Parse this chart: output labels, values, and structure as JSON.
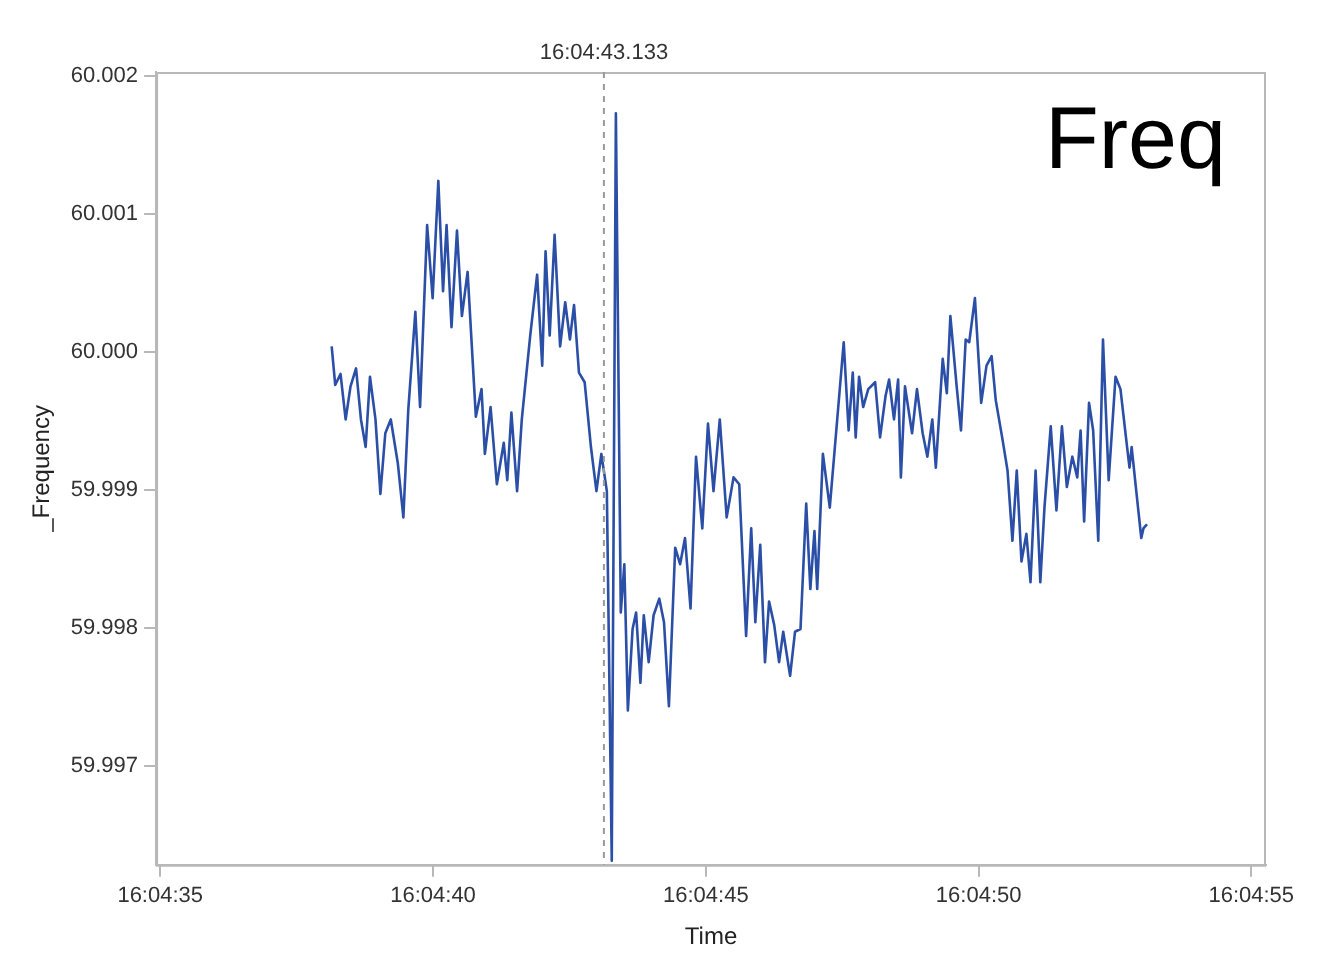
{
  "chart_data": {
    "type": "line",
    "xlabel": "Time",
    "ylabel": "_Frequency",
    "annotations": [
      "Freq"
    ],
    "xlim": [
      16.076368,
      16.082019
    ],
    "ylim": [
      59.99628,
      60.00203
    ],
    "xticks": [
      {
        "value": 16.076389,
        "label": "16:04:35"
      },
      {
        "value": 16.077778,
        "label": "16:04:40"
      },
      {
        "value": 16.079167,
        "label": "16:04:45"
      },
      {
        "value": 16.080556,
        "label": "16:04:50"
      },
      {
        "value": 16.081944,
        "label": "16:04:55"
      }
    ],
    "yticks": [
      {
        "value": 59.997,
        "label": "59.997"
      },
      {
        "value": 59.998,
        "label": "59.998"
      },
      {
        "value": 59.999,
        "label": "59.999"
      },
      {
        "value": 60.0,
        "label": "60.000"
      },
      {
        "value": 60.001,
        "label": "60.001"
      },
      {
        "value": 60.002,
        "label": "60.002"
      }
    ],
    "ref_lines": [
      {
        "axis": "x",
        "value": 16.078648,
        "label": "16:04:43.133",
        "color": "#9a9a9a",
        "line_style": "dashed"
      }
    ],
    "grid": false,
    "legend": false,
    "marker": "none",
    "line_style": "solid",
    "series": [
      {
        "color": "#2b4fa6",
        "x": [
          16.077262,
          16.07728,
          16.077307,
          16.077333,
          16.077358,
          16.077386,
          16.077411,
          16.077435,
          16.077457,
          16.077485,
          16.07751,
          16.077535,
          16.077563,
          16.077599,
          16.077627,
          16.077652,
          16.077688,
          16.077712,
          16.077748,
          16.077776,
          16.077805,
          16.077829,
          16.077847,
          16.077872,
          16.0779,
          16.077925,
          16.077954,
          16.077996,
          16.078025,
          16.078042,
          16.078071,
          16.078103,
          16.078138,
          16.078156,
          16.078177,
          16.078206,
          16.07823,
          16.078273,
          16.078308,
          16.078334,
          16.078351,
          16.078372,
          16.078397,
          16.078425,
          16.078451,
          16.078475,
          16.078496,
          16.078521,
          16.07855,
          16.078582,
          16.07861,
          16.078635,
          16.078663,
          16.078688,
          16.078709,
          16.078734,
          16.078752,
          16.07877,
          16.078794,
          16.078812,
          16.078834,
          16.078851,
          16.078876,
          16.078901,
          16.07893,
          16.078954,
          16.078979,
          16.079011,
          16.079036,
          16.079061,
          16.079089,
          16.079117,
          16.079149,
          16.079178,
          16.079206,
          16.079238,
          16.079273,
          16.079308,
          16.079337,
          16.079372,
          16.079398,
          16.079419,
          16.079444,
          16.079468,
          16.079489,
          16.079515,
          16.07954,
          16.079561,
          16.079596,
          16.079621,
          16.079649,
          16.079678,
          16.079699,
          16.07972,
          16.079734,
          16.079763,
          16.079798,
          16.079827,
          16.079869,
          16.079894,
          16.079915,
          16.07993,
          16.079947,
          16.079968,
          16.079994,
          16.080029,
          16.080054,
          16.080082,
          16.0801,
          16.080125,
          16.080146,
          16.08016,
          16.080181,
          16.080217,
          16.080242,
          16.080271,
          16.080295,
          16.08032,
          16.080338,
          16.080373,
          16.080394,
          16.080412,
          16.080444,
          16.080466,
          16.08049,
          16.080508,
          16.080537,
          16.080569,
          16.080596,
          16.080622,
          16.080643,
          16.080678,
          16.080703,
          16.080728,
          16.08075,
          16.080774,
          16.080799,
          16.08082,
          16.080846,
          16.08087,
          16.080891,
          16.080923,
          16.080952,
          16.08098,
          16.081005,
          16.081033,
          16.081058,
          16.081075,
          16.081093,
          16.081118,
          16.081139,
          16.081165,
          16.081189,
          16.081218,
          16.081253,
          16.081278,
          16.081306,
          16.081324,
          16.081335,
          16.08136,
          16.081384,
          16.081395,
          16.081413
        ],
        "values": [
          60.00004,
          59.99976,
          59.99984,
          59.99951,
          59.99975,
          59.99988,
          59.99951,
          59.99931,
          59.99982,
          59.99951,
          59.99897,
          59.99941,
          59.99951,
          59.99919,
          59.9988,
          59.99958,
          60.00029,
          59.9996,
          60.00092,
          60.00039,
          60.00124,
          60.00044,
          60.00092,
          60.00018,
          60.00088,
          60.00026,
          60.00058,
          59.99953,
          59.99973,
          59.99926,
          59.9996,
          59.99904,
          59.99934,
          59.99907,
          59.99956,
          59.99899,
          59.99951,
          60.00012,
          60.00056,
          59.9999,
          60.00073,
          60.00012,
          60.00085,
          60.00004,
          60.00036,
          60.00009,
          60.00034,
          59.99985,
          59.99978,
          59.99931,
          59.99899,
          59.99926,
          59.99899,
          59.99631,
          60.00173,
          59.99811,
          59.99846,
          59.9974,
          59.99799,
          59.99811,
          59.9976,
          59.99809,
          59.99775,
          59.99809,
          59.99821,
          59.99804,
          59.99743,
          59.99858,
          59.99846,
          59.99865,
          59.99814,
          59.99924,
          59.99872,
          59.99948,
          59.99899,
          59.99951,
          59.9988,
          59.99909,
          59.99904,
          59.99794,
          59.99872,
          59.99804,
          59.9986,
          59.99775,
          59.99819,
          59.99802,
          59.99775,
          59.99797,
          59.99765,
          59.99797,
          59.99799,
          59.9989,
          59.99828,
          59.9987,
          59.99828,
          59.99926,
          59.99887,
          59.99936,
          60.00007,
          59.99943,
          59.99985,
          59.99938,
          59.99982,
          59.9996,
          59.99973,
          59.99978,
          59.99938,
          59.99968,
          59.9998,
          59.99951,
          59.9998,
          59.99909,
          59.99975,
          59.99941,
          59.99973,
          59.99941,
          59.99924,
          59.99951,
          59.99916,
          59.99995,
          59.9997,
          60.00026,
          59.99975,
          59.99943,
          60.00009,
          60.00007,
          60.00039,
          59.99963,
          59.9999,
          59.99997,
          59.99965,
          59.99936,
          59.99914,
          59.99863,
          59.99914,
          59.99848,
          59.99868,
          59.99833,
          59.99914,
          59.99833,
          59.99887,
          59.99946,
          59.99885,
          59.99946,
          59.99902,
          59.99924,
          59.99909,
          59.99943,
          59.99877,
          59.99963,
          59.99943,
          59.99863,
          60.00009,
          59.99907,
          59.99982,
          59.99973,
          59.99938,
          59.99916,
          59.99931,
          59.99897,
          59.99865,
          59.99872,
          59.99875
        ]
      }
    ]
  }
}
